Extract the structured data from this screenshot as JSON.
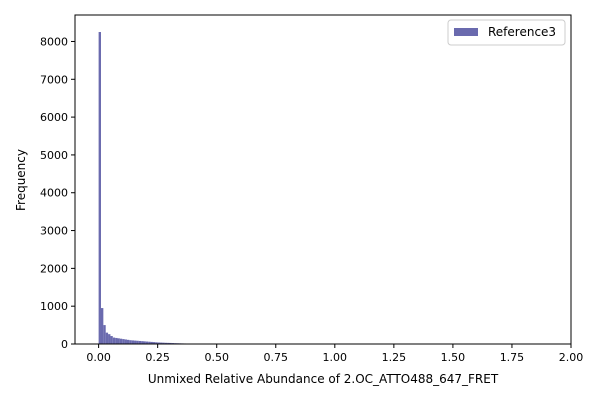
{
  "chart_data": {
    "type": "bar",
    "subtype": "histogram",
    "xlabel": "Unmixed Relative Abundance of 2.OC_ATTO488_647_FRET",
    "ylabel": "Frequency",
    "xlim": [
      -0.1,
      2.0
    ],
    "ylim": [
      0,
      8700
    ],
    "xticks": [
      "0.00",
      "0.25",
      "0.50",
      "0.75",
      "1.00",
      "1.25",
      "1.50",
      "1.75",
      "2.00"
    ],
    "yticks": [
      "0",
      "1000",
      "2000",
      "3000",
      "4000",
      "5000",
      "6000",
      "7000",
      "8000"
    ],
    "grid": false,
    "legend_position": "top-right",
    "bin_width": 0.01,
    "series": [
      {
        "name": "Reference3",
        "color": "#6a6aae",
        "bin_starts": [
          0.0,
          0.01,
          0.02,
          0.03,
          0.04,
          0.05,
          0.06,
          0.07,
          0.08,
          0.09,
          0.1,
          0.11,
          0.12,
          0.13,
          0.14,
          0.15,
          0.16,
          0.17,
          0.18,
          0.19,
          0.2,
          0.21,
          0.22,
          0.23,
          0.24,
          0.25,
          0.26,
          0.27,
          0.28,
          0.29,
          0.3,
          0.31,
          0.32,
          0.33,
          0.34,
          0.35,
          0.36,
          0.37,
          0.38,
          0.39,
          0.4,
          0.42,
          0.44,
          0.46,
          0.48,
          0.5,
          0.52,
          0.55,
          0.58
        ],
        "values": [
          8250,
          950,
          500,
          300,
          260,
          210,
          170,
          160,
          150,
          140,
          130,
          120,
          110,
          100,
          95,
          90,
          85,
          80,
          75,
          70,
          65,
          60,
          55,
          50,
          45,
          40,
          38,
          35,
          32,
          30,
          28,
          25,
          22,
          20,
          18,
          16,
          14,
          12,
          10,
          10,
          8,
          6,
          5,
          4,
          3,
          3,
          2,
          2,
          1
        ]
      }
    ]
  }
}
